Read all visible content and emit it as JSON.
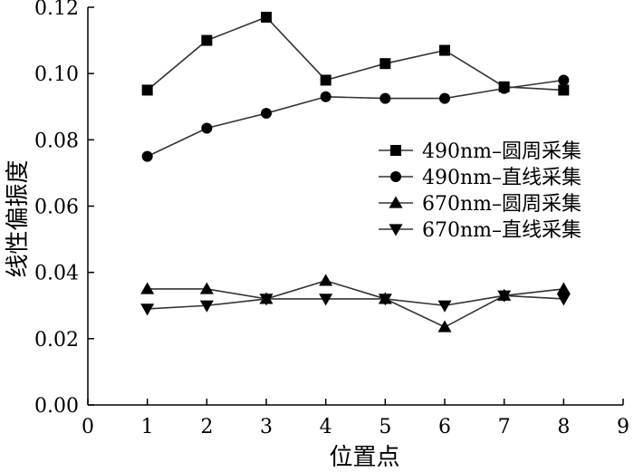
{
  "chart_data": {
    "type": "line",
    "xlabel": "位置点",
    "ylabel": "线性偏振度",
    "xlim": [
      0,
      9
    ],
    "ylim": [
      0,
      0.12
    ],
    "x_ticks": [
      "0",
      "1",
      "2",
      "3",
      "4",
      "5",
      "6",
      "7",
      "8",
      "9"
    ],
    "y_ticks": [
      "0.00",
      "0.02",
      "0.04",
      "0.06",
      "0.08",
      "0.10",
      "0.12"
    ],
    "x": [
      1,
      2,
      3,
      4,
      5,
      6,
      7,
      8
    ],
    "grid": false,
    "legend_position": "right",
    "series": [
      {
        "name": "490nm–圆周采集",
        "marker": "square",
        "values": [
          0.095,
          0.11,
          0.117,
          0.098,
          0.103,
          0.107,
          0.096,
          0.095
        ]
      },
      {
        "name": "490nm–直线采集",
        "marker": "circle",
        "values": [
          0.075,
          0.0835,
          0.088,
          0.093,
          0.0925,
          0.0925,
          0.0955,
          0.098
        ]
      },
      {
        "name": "670nm–圆周采集",
        "marker": "triangle-up",
        "values": [
          0.035,
          0.035,
          0.032,
          0.0375,
          0.032,
          0.0235,
          0.033,
          0.035
        ]
      },
      {
        "name": "670nm–直线采集",
        "marker": "triangle-down",
        "values": [
          0.029,
          0.03,
          0.032,
          0.032,
          0.032,
          0.03,
          0.033,
          0.032
        ]
      }
    ]
  }
}
